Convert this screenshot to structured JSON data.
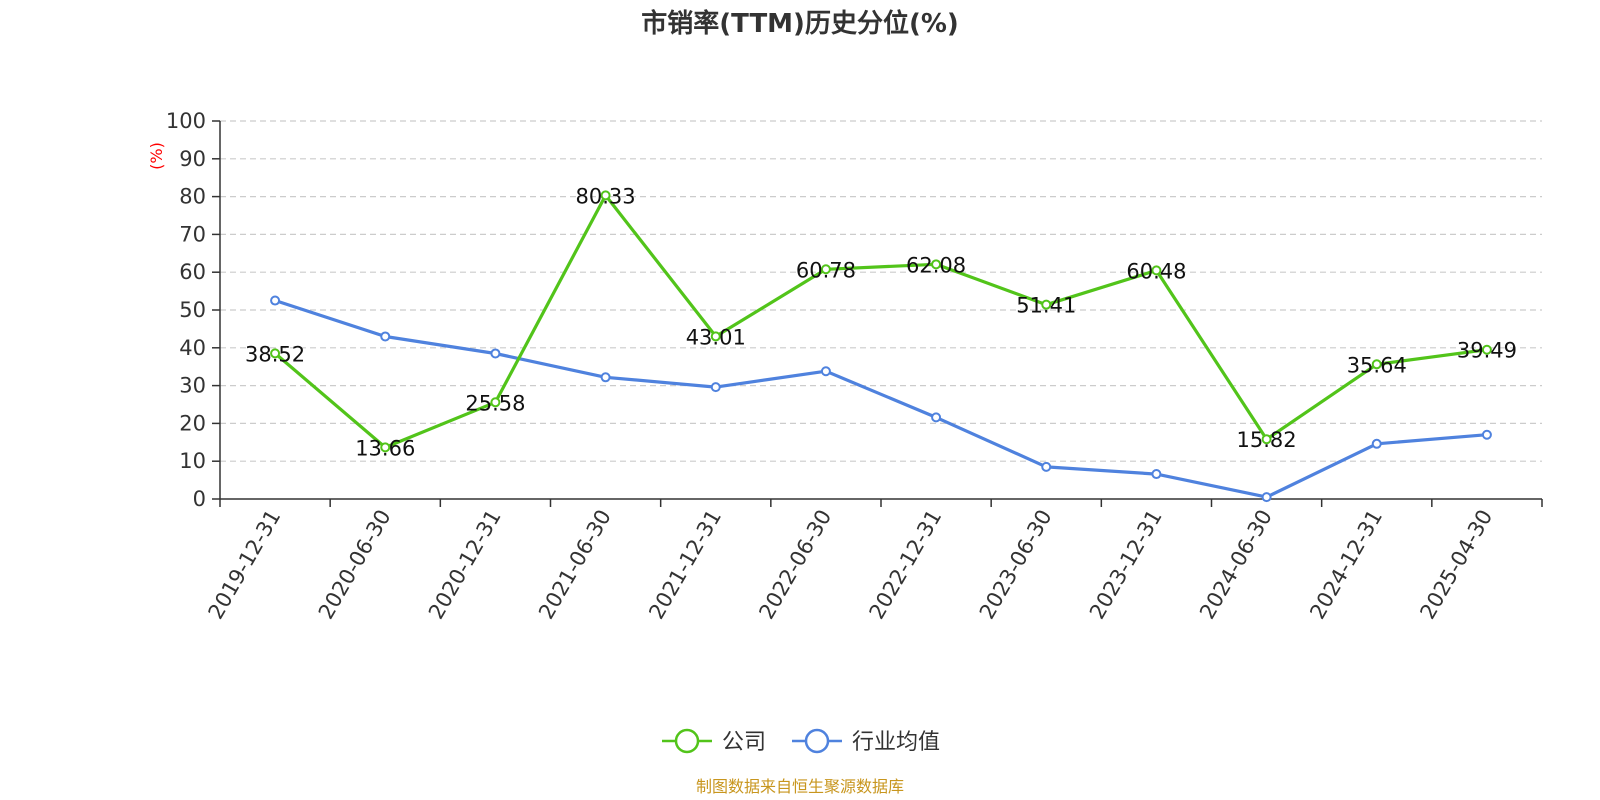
{
  "chart_data": {
    "type": "line",
    "title": "市销率(TTM)历史分位(%)",
    "ylabel": "(%)",
    "ylim": [
      0,
      100
    ],
    "yticks": [
      0,
      10,
      20,
      30,
      40,
      50,
      60,
      70,
      80,
      90,
      100
    ],
    "grid": true,
    "legend_position": "bottom-center",
    "x": [
      "2019-12-31",
      "2020-06-30",
      "2020-12-31",
      "2021-06-30",
      "2021-12-31",
      "2022-06-30",
      "2022-12-31",
      "2023-06-30",
      "2023-12-31",
      "2024-06-30",
      "2024-12-31",
      "2025-04-30"
    ],
    "series": [
      {
        "name": "公司",
        "color": "#52c41a",
        "values": [
          38.52,
          13.66,
          25.58,
          80.33,
          43.01,
          60.78,
          62.08,
          51.41,
          60.48,
          15.82,
          35.64,
          39.49
        ],
        "labels": [
          "38.52",
          "13.66",
          "25.58",
          "80.33",
          "43.01",
          "60.78",
          "62.08",
          "51.41",
          "60.48",
          "15.82",
          "35.64",
          "39.49"
        ]
      },
      {
        "name": "行业均值",
        "color": "#4f82de",
        "values": [
          52.5,
          43.0,
          38.5,
          32.2,
          29.6,
          33.8,
          21.6,
          8.5,
          6.6,
          0.5,
          14.6,
          17.0
        ]
      }
    ],
    "source": "制图数据来自恒生聚源数据库",
    "colors": {
      "unit": "#ff0000",
      "source": "#c8961e",
      "grid": "#cccccc",
      "axis": "#333333"
    }
  }
}
